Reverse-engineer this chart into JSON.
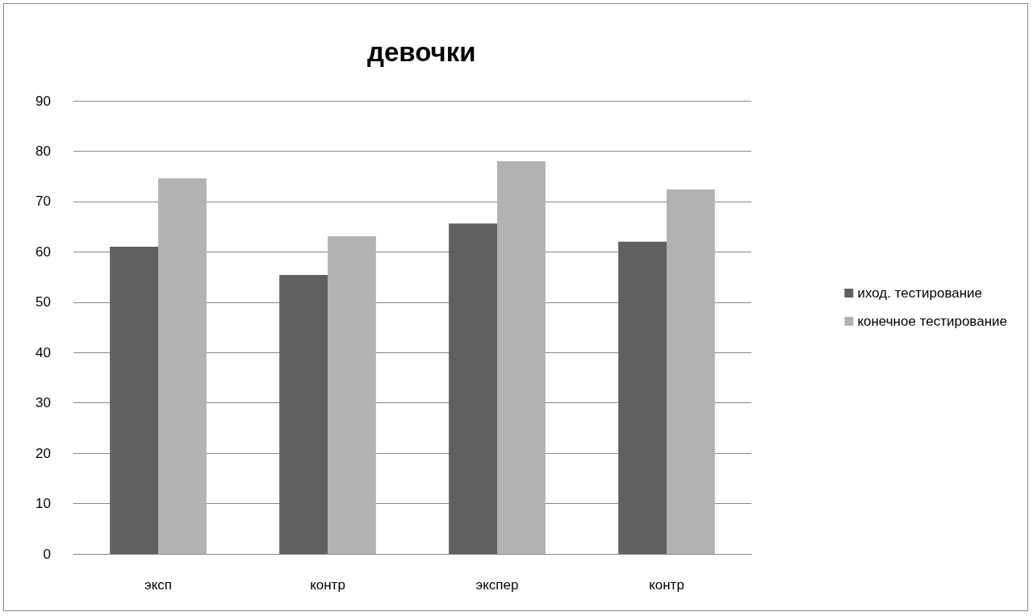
{
  "chart_data": {
    "type": "bar",
    "title": "девочки",
    "categories": [
      "эксп",
      "контр",
      "экспер",
      "контр"
    ],
    "series": [
      {
        "name": "иход. тестирование",
        "color": "#606060",
        "values": [
          61,
          55.4,
          65.6,
          62
        ]
      },
      {
        "name": "конечное тестирование",
        "color": "#b2b2b2",
        "values": [
          74.6,
          63.1,
          78,
          72.4
        ]
      }
    ],
    "ylim": [
      0,
      90
    ],
    "yticks": [
      0,
      10,
      20,
      30,
      40,
      50,
      60,
      70,
      80,
      90
    ],
    "grid": "y",
    "legend": "right"
  }
}
